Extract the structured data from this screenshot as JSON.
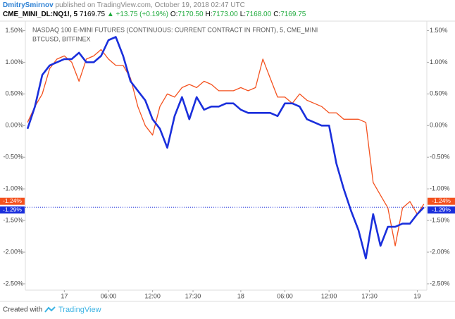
{
  "header": {
    "author": "DmitrySmirnov",
    "published": "published on TradingView.com, October 19, 2018 02:47 UTC"
  },
  "ticker": {
    "symbol": "CME_MINI_DL:NQ1!, 5",
    "price": "7169.75",
    "change": "▲ +13.75 (+0.19%)",
    "ohlc": [
      {
        "key": "O:",
        "value": "7170.50"
      },
      {
        "key": "H:",
        "value": "7173.00"
      },
      {
        "key": "L:",
        "value": "7168.00"
      },
      {
        "key": "C:",
        "value": "7169.75"
      }
    ]
  },
  "footer": {
    "created": "Created with",
    "brand": "TradingView"
  },
  "chart_data": {
    "type": "line",
    "x": [
      -5,
      -4,
      -3,
      -2,
      -1,
      0,
      1,
      2,
      3,
      4,
      5,
      6,
      7,
      8,
      9,
      10,
      11,
      12,
      13,
      14,
      15,
      16,
      17,
      18,
      19,
      20,
      21,
      22,
      23,
      24,
      25,
      26,
      27,
      28,
      29,
      30,
      31,
      32,
      33,
      34,
      35,
      36,
      37,
      38,
      39,
      40,
      41,
      42,
      43,
      44,
      45,
      46,
      47,
      48,
      48.9
    ],
    "xlim": [
      -5.3,
      49.3
    ],
    "xticks": [
      {
        "value": 0,
        "label": "17"
      },
      {
        "value": 6,
        "label": "06:00"
      },
      {
        "value": 12,
        "label": "12:00"
      },
      {
        "value": 17.5,
        "label": "17:30"
      },
      {
        "value": 24,
        "label": "18"
      },
      {
        "value": 30,
        "label": "06:00"
      },
      {
        "value": 36,
        "label": "12:00"
      },
      {
        "value": 41.5,
        "label": "17:30"
      },
      {
        "value": 48,
        "label": "19"
      }
    ],
    "ylim": [
      -2.6,
      1.65
    ],
    "yticks": [
      {
        "value": 1.5,
        "label": "1.50%"
      },
      {
        "value": 1.0,
        "label": "1.00%"
      },
      {
        "value": 0.5,
        "label": "0.50%"
      },
      {
        "value": 0.0,
        "label": "0.00%"
      },
      {
        "value": -0.5,
        "label": "-0.50%"
      },
      {
        "value": -1.0,
        "label": "-1.00%"
      },
      {
        "value": -1.5,
        "label": "-1.50%"
      },
      {
        "value": -2.0,
        "label": "-2.00%"
      },
      {
        "value": -2.5,
        "label": "-2.50%"
      }
    ],
    "series": [
      {
        "name": "NASDAQ 100 E-MINI FUTURES (CONTINUOUS: CURRENT CONTRACT IN FRONT), 5, CME_MINI",
        "color": "#f4511e",
        "width": 1.3,
        "values": [
          0.05,
          0.3,
          0.5,
          0.9,
          1.05,
          1.1,
          1.0,
          0.7,
          1.05,
          1.1,
          1.2,
          1.05,
          0.95,
          0.95,
          0.75,
          0.3,
          0.0,
          -0.15,
          0.3,
          0.5,
          0.45,
          0.6,
          0.65,
          0.6,
          0.7,
          0.65,
          0.55,
          0.55,
          0.55,
          0.6,
          0.55,
          0.6,
          1.05,
          0.75,
          0.45,
          0.45,
          0.35,
          0.5,
          0.4,
          0.35,
          0.3,
          0.2,
          0.2,
          0.1,
          0.1,
          0.1,
          0.05,
          -0.9,
          -1.1,
          -1.3,
          -1.9,
          -1.3,
          -1.2,
          -1.4,
          -1.24
        ],
        "last_value": -1.24,
        "last_label": "-1.24%"
      },
      {
        "name": "BTCUSD, BITFINEX",
        "color": "#1a2fdc",
        "width": 2.6,
        "values": [
          -0.05,
          0.3,
          0.8,
          0.95,
          1.0,
          1.05,
          1.05,
          1.15,
          1.0,
          1.0,
          1.1,
          1.35,
          1.4,
          1.1,
          0.7,
          0.55,
          0.4,
          0.1,
          -0.05,
          -0.35,
          0.15,
          0.45,
          0.1,
          0.45,
          0.25,
          0.3,
          0.3,
          0.35,
          0.35,
          0.25,
          0.2,
          0.2,
          0.2,
          0.2,
          0.15,
          0.35,
          0.35,
          0.3,
          0.1,
          0.05,
          0.0,
          0.0,
          -0.6,
          -1.0,
          -1.35,
          -1.65,
          -2.1,
          -1.4,
          -1.9,
          -1.6,
          -1.6,
          -1.55,
          -1.55,
          -1.4,
          -1.29
        ],
        "last_value": -1.29,
        "last_label": "-1.29%",
        "price_line": true
      }
    ]
  }
}
